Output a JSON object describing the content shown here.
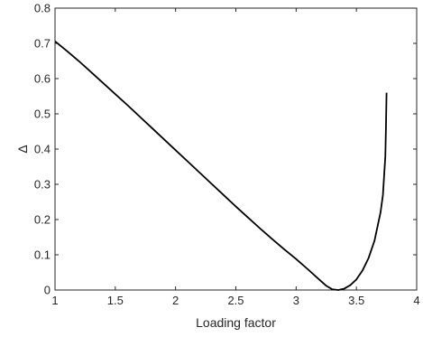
{
  "chart_data": {
    "type": "line",
    "title": "",
    "xlabel": "Loading factor",
    "ylabel": "Δ",
    "xlim": [
      1,
      4
    ],
    "ylim": [
      0,
      0.8
    ],
    "xticks": [
      1,
      1.5,
      2,
      2.5,
      3,
      3.5,
      4
    ],
    "yticks": [
      0,
      0.1,
      0.2,
      0.3,
      0.4,
      0.5,
      0.6,
      0.7,
      0.8
    ],
    "xtick_labels": [
      "1",
      "1.5",
      "2",
      "2.5",
      "3",
      "3.5",
      "4"
    ],
    "ytick_labels": [
      "0",
      "0.1",
      "0.2",
      "0.3",
      "0.4",
      "0.5",
      "0.6",
      "0.7",
      "0.8"
    ],
    "grid": false,
    "colors": {
      "line": "#000000",
      "axes": "#262626"
    },
    "series": [
      {
        "x": [
          1.0,
          1.1,
          1.2,
          1.3,
          1.4,
          1.5,
          1.6,
          1.7,
          1.8,
          1.9,
          2.0,
          2.1,
          2.2,
          2.3,
          2.4,
          2.5,
          2.6,
          2.7,
          2.8,
          2.9,
          3.0,
          3.1,
          3.2,
          3.25,
          3.3,
          3.35,
          3.4,
          3.45,
          3.5,
          3.55,
          3.6,
          3.65,
          3.7,
          3.72,
          3.74,
          3.745,
          3.75
        ],
        "y": [
          0.706,
          0.678,
          0.649,
          0.618,
          0.587,
          0.556,
          0.525,
          0.493,
          0.461,
          0.429,
          0.397,
          0.365,
          0.333,
          0.301,
          0.269,
          0.237,
          0.206,
          0.175,
          0.145,
          0.116,
          0.088,
          0.058,
          0.027,
          0.012,
          0.002,
          0.0,
          0.004,
          0.014,
          0.03,
          0.055,
          0.09,
          0.14,
          0.22,
          0.27,
          0.38,
          0.46,
          0.56
        ]
      }
    ]
  }
}
